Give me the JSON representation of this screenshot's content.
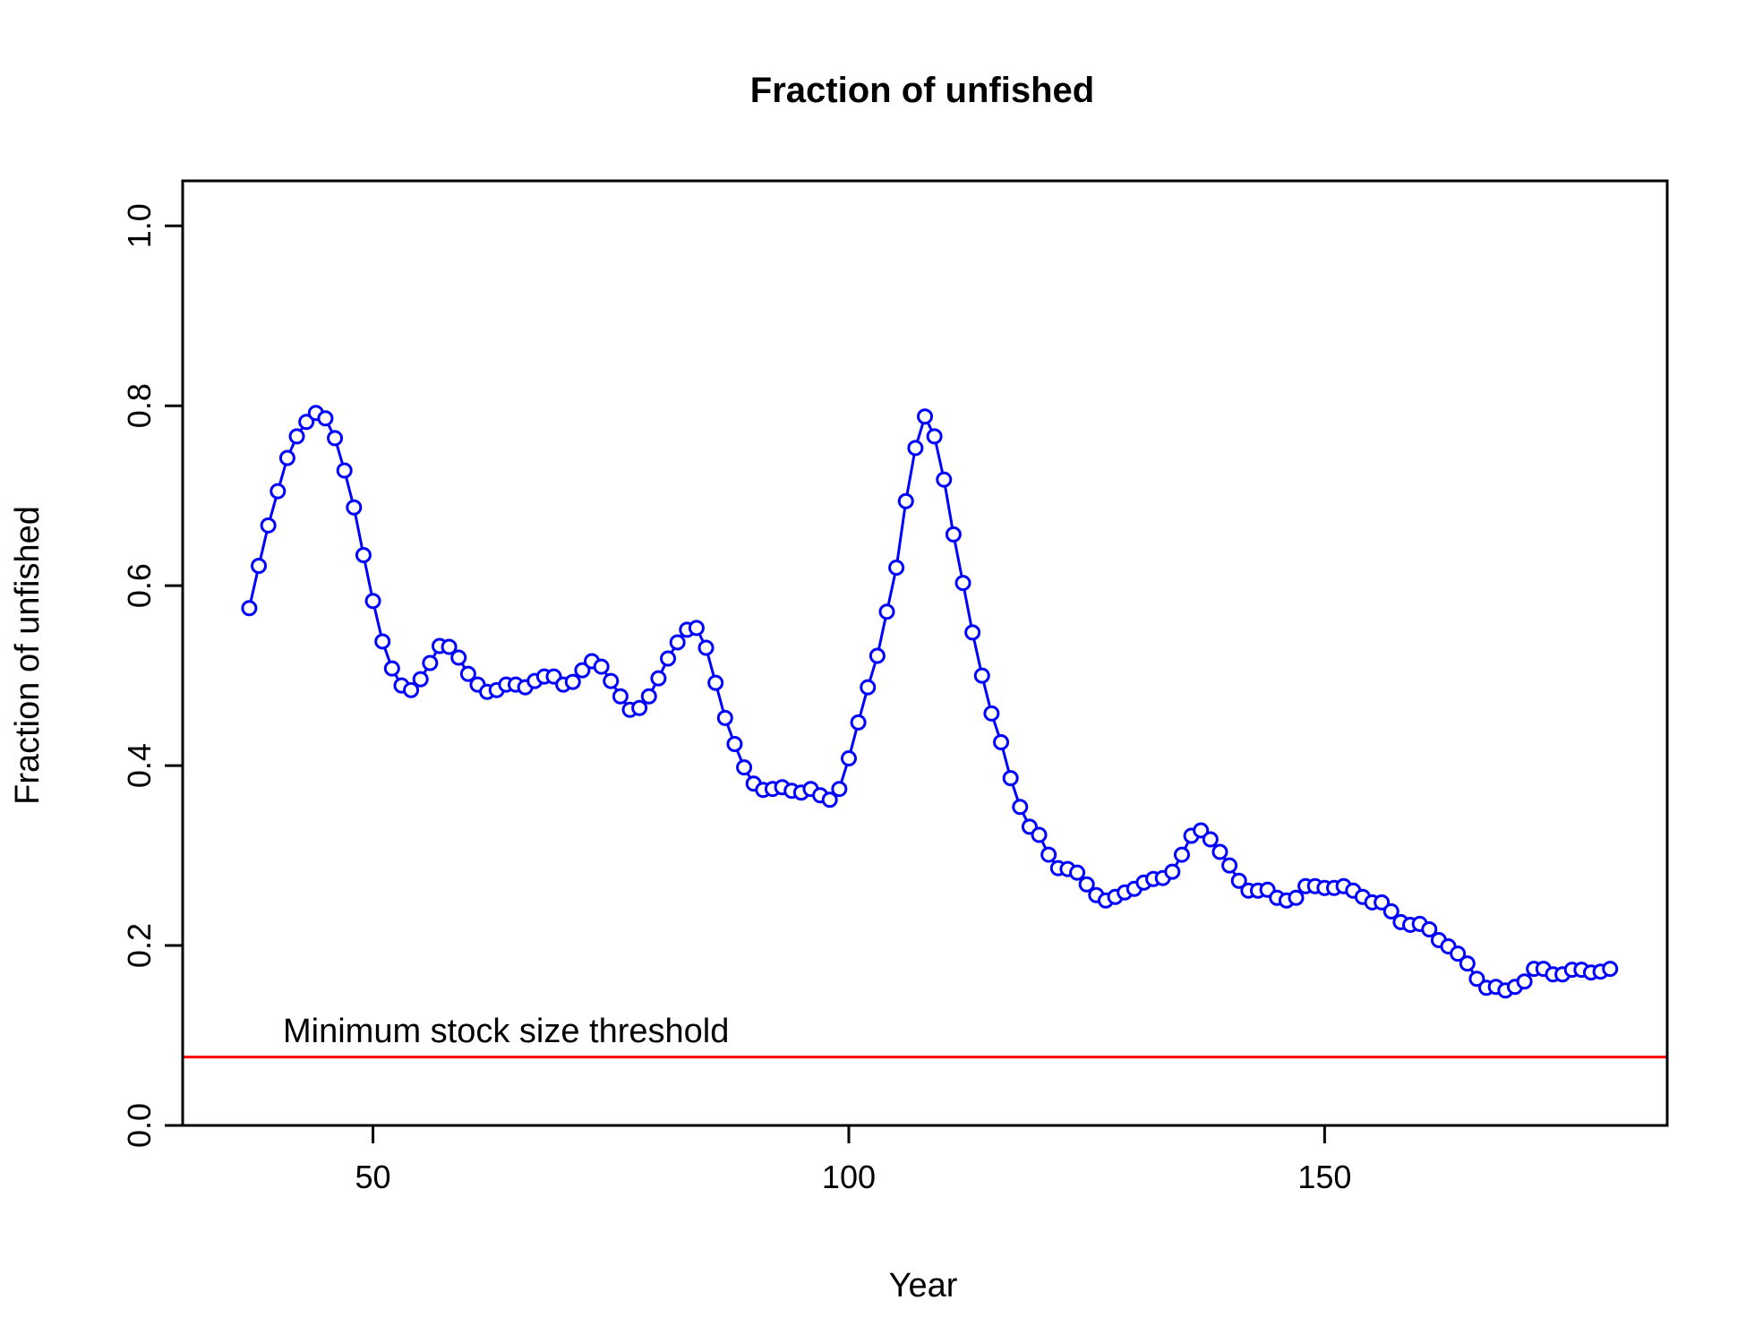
{
  "chart_data": {
    "type": "line",
    "title": "Fraction of unfished",
    "xlabel": "Year",
    "ylabel": "Fraction of unfished",
    "xlim": [
      30,
      186
    ],
    "ylim": [
      0,
      1.05
    ],
    "x_ticks": [
      50,
      100,
      150
    ],
    "y_ticks": [
      0.0,
      0.2,
      0.4,
      0.6,
      0.8,
      1.0
    ],
    "x_tick_labels": [
      "50",
      "100",
      "150"
    ],
    "y_tick_labels": [
      "0.0",
      "0.2",
      "0.4",
      "0.6",
      "0.8",
      "1.0"
    ],
    "grid": false,
    "legend": "none",
    "series": [
      {
        "color": "#0000ff",
        "marker": "open-circle",
        "x_start": 37,
        "x_step": 1,
        "values": [
          0.575,
          0.622,
          0.667,
          0.705,
          0.742,
          0.766,
          0.782,
          0.792,
          0.786,
          0.764,
          0.728,
          0.687,
          0.634,
          0.583,
          0.538,
          0.508,
          0.489,
          0.484,
          0.496,
          0.514,
          0.533,
          0.532,
          0.52,
          0.502,
          0.49,
          0.482,
          0.484,
          0.49,
          0.49,
          0.487,
          0.494,
          0.499,
          0.499,
          0.49,
          0.493,
          0.506,
          0.516,
          0.51,
          0.494,
          0.477,
          0.462,
          0.464,
          0.477,
          0.497,
          0.519,
          0.537,
          0.551,
          0.553,
          0.531,
          0.492,
          0.453,
          0.424,
          0.398,
          0.38,
          0.373,
          0.374,
          0.376,
          0.372,
          0.37,
          0.374,
          0.367,
          0.362,
          0.374,
          0.408,
          0.448,
          0.487,
          0.522,
          0.571,
          0.62,
          0.694,
          0.753,
          0.788,
          0.766,
          0.718,
          0.657,
          0.603,
          0.548,
          0.5,
          0.458,
          0.426,
          0.386,
          0.354,
          0.332,
          0.323,
          0.301,
          0.286,
          0.285,
          0.281,
          0.268,
          0.256,
          0.25,
          0.254,
          0.259,
          0.263,
          0.27,
          0.274,
          0.275,
          0.282,
          0.301,
          0.322,
          0.328,
          0.318,
          0.304,
          0.289,
          0.272,
          0.261,
          0.261,
          0.262,
          0.253,
          0.25,
          0.253,
          0.266,
          0.266,
          0.264,
          0.264,
          0.266,
          0.261,
          0.254,
          0.248,
          0.248,
          0.238,
          0.226,
          0.223,
          0.224,
          0.218,
          0.206,
          0.199,
          0.191,
          0.18,
          0.163,
          0.153,
          0.154,
          0.15,
          0.154,
          0.16,
          0.174,
          0.174,
          0.168,
          0.168,
          0.173,
          0.173,
          0.17,
          0.171,
          0.174
        ]
      }
    ],
    "hlines": [
      {
        "y": 0.076,
        "color": "#ff0000",
        "label": "Minimum stock size threshold"
      }
    ]
  }
}
